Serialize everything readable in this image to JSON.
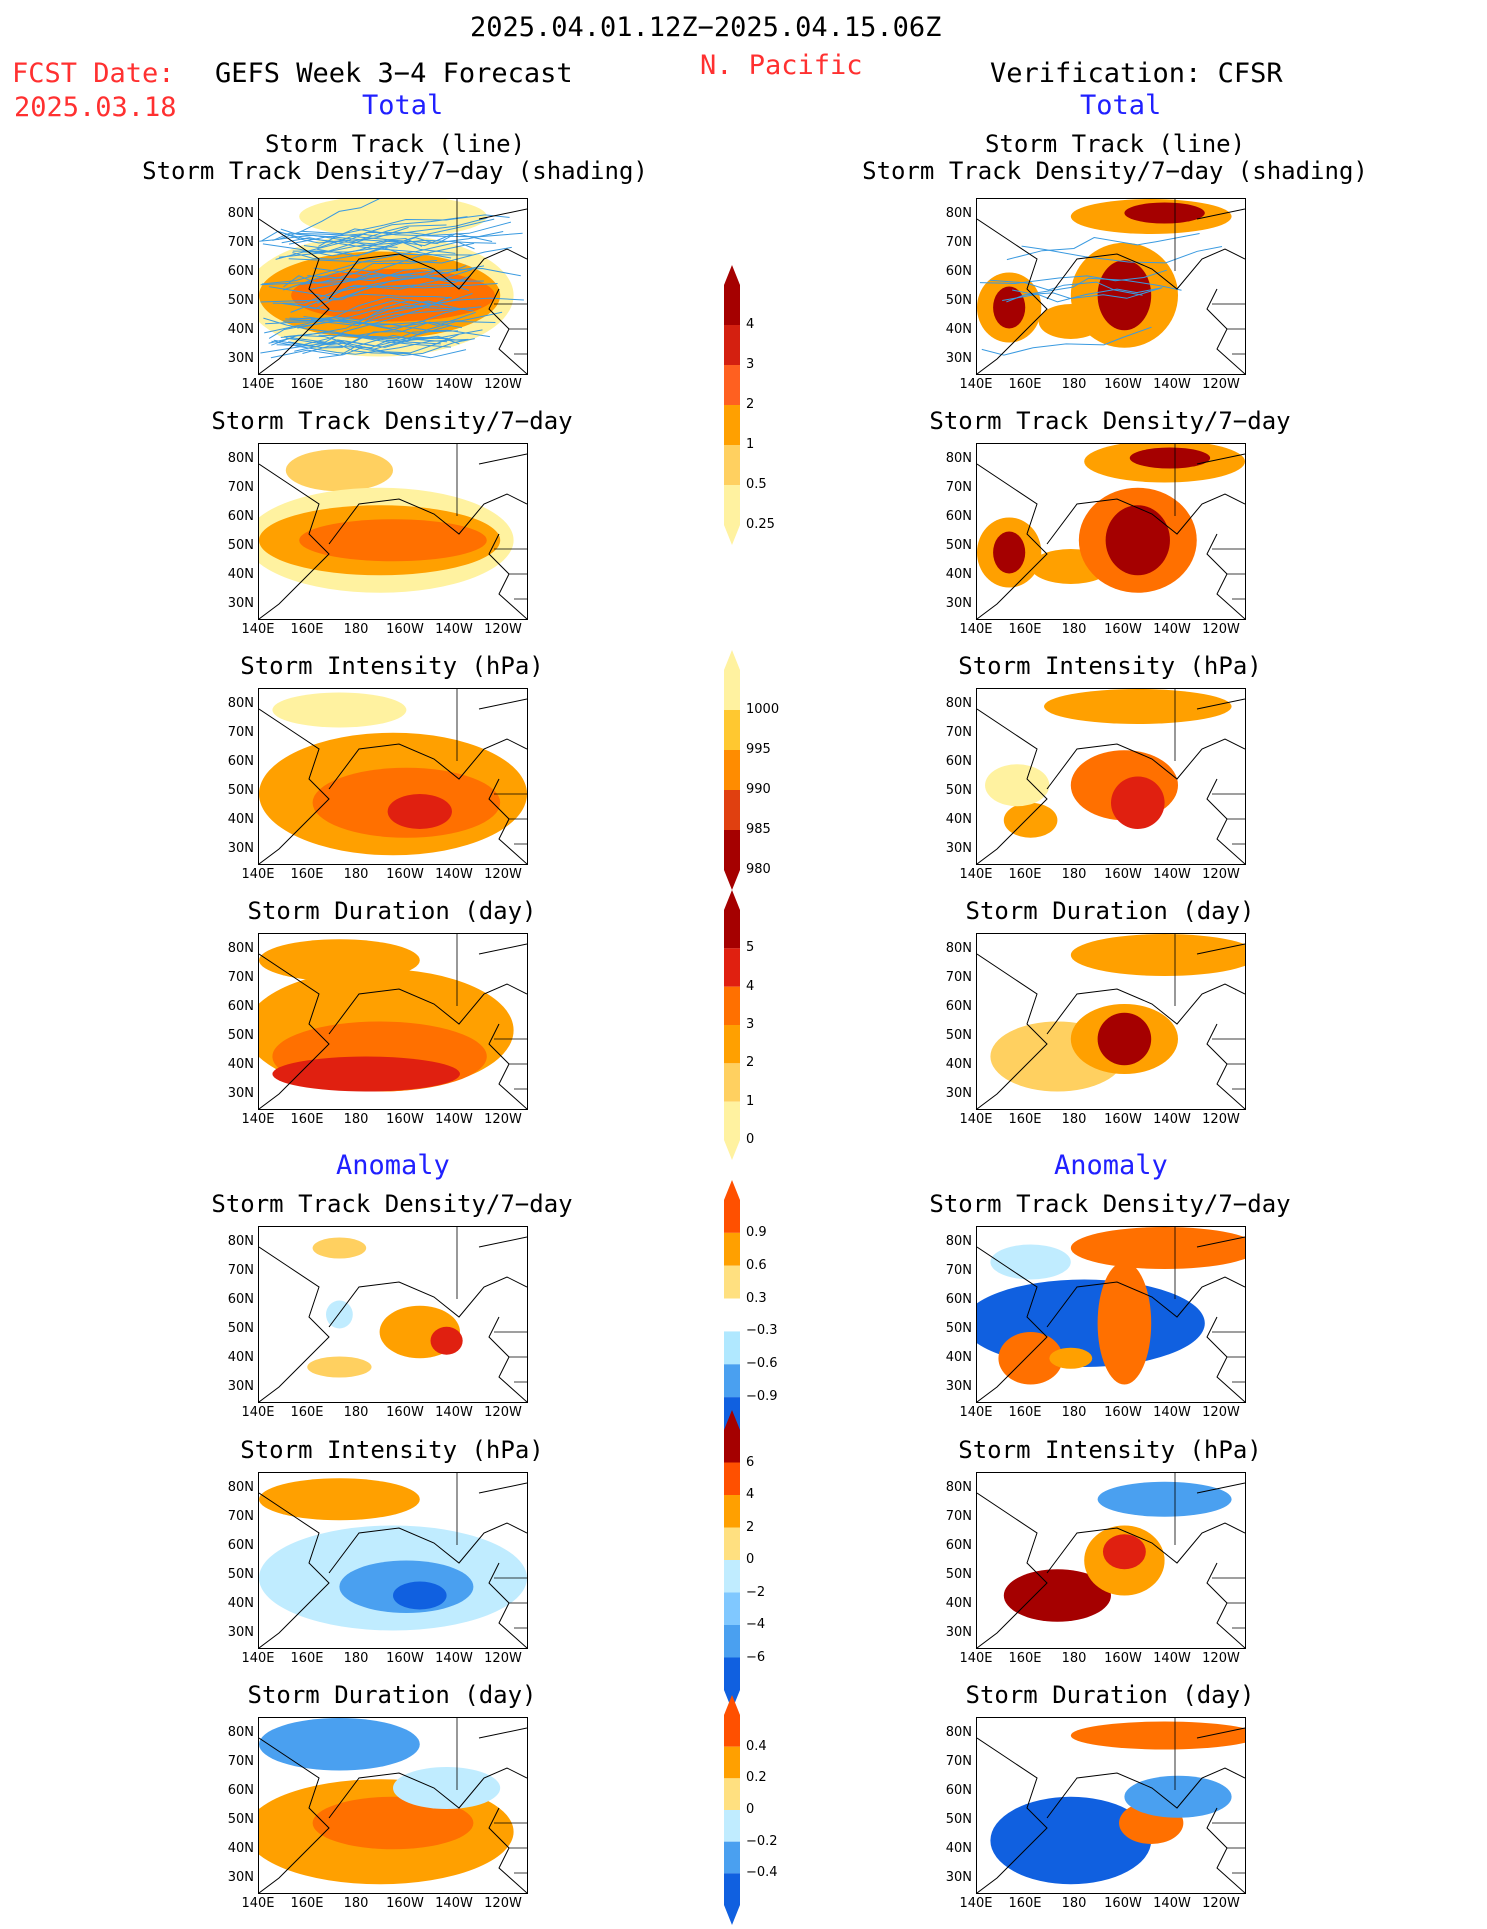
{
  "header": {
    "period": "2025.04.01.12Z−2025.04.15.06Z",
    "fcst_label": "FCST Date:",
    "fcst_date": "2025.03.18",
    "model": "GEFS Week 3−4 Forecast",
    "region": "N. Pacific",
    "verification": "Verification: CFSR",
    "total_left": "Total",
    "total_right": "Total",
    "anomaly_left": "Anomaly",
    "anomaly_right": "Anomaly"
  },
  "axes": {
    "lat": [
      "80N",
      "70N",
      "60N",
      "50N",
      "40N",
      "30N"
    ],
    "lon": [
      "140E",
      "160E",
      "180",
      "160W",
      "140W",
      "120W"
    ]
  },
  "panels": {
    "track_left": {
      "title1": "Storm Track (line)",
      "title2": "Storm Track Density/7−day (shading)"
    },
    "track_right": {
      "title1": "Storm Track (line)",
      "title2": "Storm Track Density/7−day (shading)"
    },
    "density_left": {
      "title": "Storm Track Density/7−day"
    },
    "density_right": {
      "title": "Storm Track Density/7−day"
    },
    "intensity_left": {
      "title": "Storm Intensity (hPa)"
    },
    "intensity_right": {
      "title": "Storm Intensity (hPa)"
    },
    "duration_left": {
      "title": "Storm Duration (day)"
    },
    "duration_right": {
      "title": "Storm Duration (day)"
    },
    "anom_density_left": {
      "title": "Storm Track Density/7−day"
    },
    "anom_density_right": {
      "title": "Storm Track Density/7−day"
    },
    "anom_intensity_left": {
      "title": "Storm Intensity (hPa)"
    },
    "anom_intensity_right": {
      "title": "Storm Intensity (hPa)"
    },
    "anom_duration_left": {
      "title": "Storm Duration (day)"
    },
    "anom_duration_right": {
      "title": "Storm Duration (day)"
    }
  },
  "colorbars": {
    "density": {
      "labels": [
        "4",
        "3",
        "2",
        "1",
        "0.5",
        "0.25"
      ],
      "colors": [
        "#a50000",
        "#d42010",
        "#ff6020",
        "#ffa000",
        "#ffd060",
        "#fff2a0"
      ]
    },
    "intensity": {
      "labels": [
        "1000",
        "995",
        "990",
        "985",
        "980"
      ],
      "colors": [
        "#fff2a0",
        "#ffc830",
        "#ff8c00",
        "#e04010",
        "#a50000"
      ]
    },
    "duration": {
      "labels": [
        "5",
        "4",
        "3",
        "2",
        "1",
        "0"
      ],
      "colors": [
        "#a50000",
        "#e02010",
        "#ff7000",
        "#ffa000",
        "#ffd060",
        "#fff2a0"
      ]
    },
    "anom_density": {
      "labels": [
        "0.9",
        "0.6",
        "0.3",
        "−0.3",
        "−0.6",
        "−0.9"
      ],
      "colors": [
        "#ff5000",
        "#ffa000",
        "#ffe080",
        "#ffffff",
        "#b0e8ff",
        "#4aa0f0",
        "#1060e0"
      ]
    },
    "anom_intensity": {
      "labels": [
        "6",
        "4",
        "2",
        "0",
        "−2",
        "−4",
        "−6"
      ],
      "colors": [
        "#a50000",
        "#ff5000",
        "#ffa000",
        "#ffe080",
        "#c0ecff",
        "#80c8ff",
        "#4aa0f0",
        "#1060e0"
      ]
    },
    "anom_duration": {
      "labels": [
        "0.4",
        "0.2",
        "0",
        "−0.2",
        "−0.4"
      ],
      "colors": [
        "#ff5000",
        "#ffa000",
        "#ffe080",
        "#c0ecff",
        "#4aa0f0",
        "#1060e0"
      ]
    }
  }
}
